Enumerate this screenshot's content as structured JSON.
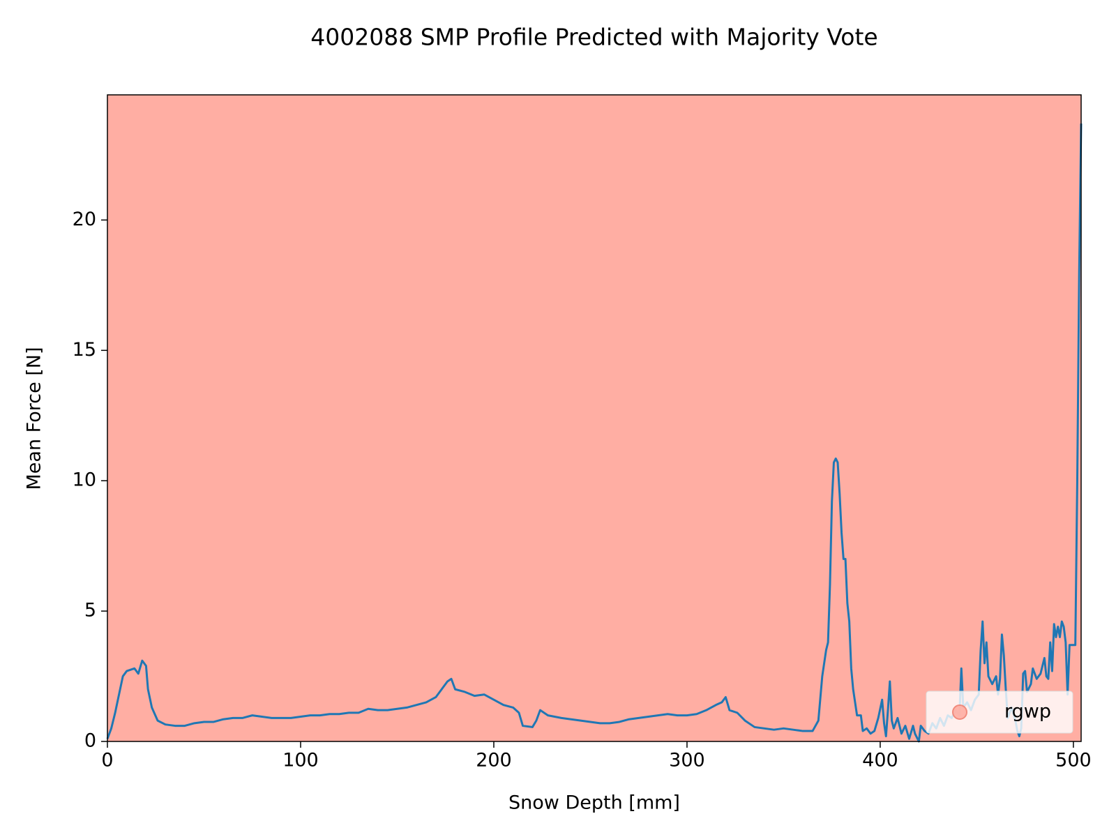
{
  "chart_data": {
    "type": "line",
    "title": "4002088 SMP Profile Predicted with Majority Vote",
    "xlabel": "Snow Depth [mm]",
    "ylabel": "Mean Force [N]",
    "color": "#1f77b4",
    "regions": [
      {
        "name": "rgwp",
        "color": "#ffaea3",
        "start": 0,
        "end": 504
      }
    ],
    "legend": "lower right",
    "xlim": [
      0,
      504
    ],
    "ylim": [
      0,
      24.8
    ],
    "xticks": [
      0,
      100,
      200,
      300,
      400,
      500
    ],
    "yticks": [
      0,
      5,
      10,
      15,
      20
    ],
    "x": [
      0,
      2,
      4,
      6,
      8,
      10,
      12,
      14,
      16,
      18,
      20,
      21,
      23,
      26,
      30,
      35,
      40,
      45,
      50,
      55,
      60,
      65,
      70,
      75,
      80,
      85,
      90,
      95,
      100,
      105,
      110,
      115,
      120,
      125,
      130,
      135,
      140,
      145,
      150,
      155,
      160,
      165,
      170,
      173,
      176,
      178,
      180,
      185,
      190,
      195,
      200,
      205,
      210,
      213,
      215,
      220,
      222,
      224,
      228,
      235,
      240,
      245,
      250,
      255,
      260,
      265,
      270,
      275,
      280,
      285,
      290,
      295,
      300,
      305,
      310,
      315,
      318,
      320,
      322,
      326,
      330,
      335,
      340,
      345,
      350,
      355,
      360,
      365,
      368,
      370,
      372,
      373,
      374,
      375,
      376,
      377,
      378,
      379,
      380,
      381,
      382,
      383,
      384,
      385,
      386,
      387,
      388,
      390,
      391,
      393,
      395,
      397,
      399,
      401,
      402,
      403,
      404,
      405,
      406,
      407,
      409,
      411,
      413,
      415,
      417,
      418,
      420,
      421,
      423,
      425,
      427,
      429,
      431,
      433,
      435,
      437,
      439,
      441,
      442,
      443,
      445,
      447,
      449,
      451,
      452,
      453,
      454,
      455,
      456,
      458,
      460,
      461,
      462,
      463,
      464,
      465,
      466,
      468,
      470,
      471,
      472,
      473,
      474,
      475,
      476,
      478,
      479,
      481,
      483,
      485,
      486,
      487,
      488,
      489,
      490,
      491,
      492,
      493,
      494,
      495,
      496,
      497,
      498,
      500,
      501,
      502,
      503,
      504
    ],
    "values": [
      0.1,
      0.5,
      1.1,
      1.8,
      2.5,
      2.7,
      2.75,
      2.8,
      2.6,
      3.1,
      2.9,
      2.0,
      1.3,
      0.8,
      0.65,
      0.6,
      0.6,
      0.7,
      0.75,
      0.75,
      0.85,
      0.9,
      0.9,
      1.0,
      0.95,
      0.9,
      0.9,
      0.9,
      0.95,
      1.0,
      1.0,
      1.05,
      1.05,
      1.1,
      1.1,
      1.25,
      1.2,
      1.2,
      1.25,
      1.3,
      1.4,
      1.5,
      1.7,
      2.0,
      2.3,
      2.4,
      2.0,
      1.9,
      1.75,
      1.8,
      1.6,
      1.4,
      1.3,
      1.1,
      0.6,
      0.55,
      0.8,
      1.2,
      1.0,
      0.9,
      0.85,
      0.8,
      0.75,
      0.7,
      0.7,
      0.75,
      0.85,
      0.9,
      0.95,
      1.0,
      1.05,
      1.0,
      1.0,
      1.05,
      1.2,
      1.4,
      1.5,
      1.7,
      1.2,
      1.1,
      0.8,
      0.55,
      0.5,
      0.45,
      0.5,
      0.45,
      0.4,
      0.4,
      0.8,
      2.5,
      3.5,
      3.8,
      6.0,
      9.2,
      10.7,
      10.85,
      10.7,
      9.5,
      8.0,
      7.0,
      7.0,
      5.3,
      4.6,
      2.8,
      2.0,
      1.5,
      1.0,
      1.0,
      0.4,
      0.5,
      0.3,
      0.4,
      0.9,
      1.6,
      0.7,
      0.2,
      1.2,
      2.3,
      0.8,
      0.5,
      0.9,
      0.3,
      0.6,
      0.1,
      0.6,
      0.3,
      0.0,
      0.6,
      0.4,
      0.3,
      0.7,
      0.5,
      0.9,
      0.6,
      1.0,
      0.9,
      1.2,
      1.0,
      2.8,
      1.3,
      1.5,
      1.2,
      1.6,
      1.8,
      3.5,
      4.6,
      3.0,
      3.8,
      2.5,
      2.2,
      2.5,
      1.8,
      2.4,
      4.1,
      3.3,
      2.0,
      0.9,
      1.3,
      0.8,
      0.4,
      0.2,
      0.5,
      2.6,
      2.7,
      1.9,
      2.2,
      2.8,
      2.4,
      2.6,
      3.2,
      2.5,
      2.4,
      3.8,
      2.7,
      4.5,
      4.0,
      4.4,
      4.0,
      4.6,
      4.4,
      3.8,
      1.8,
      3.7,
      3.7,
      3.7,
      10,
      18,
      23.7
    ]
  }
}
